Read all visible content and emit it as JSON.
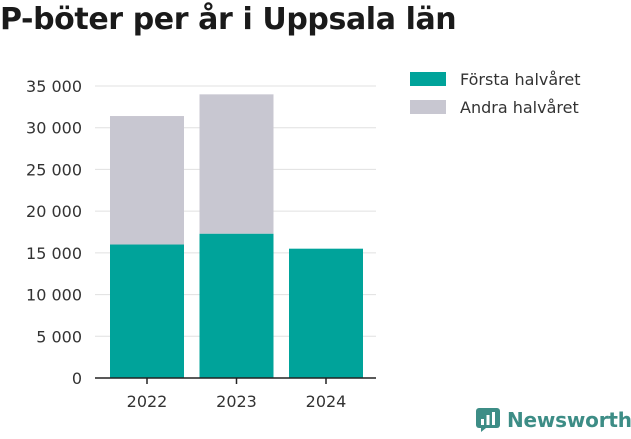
{
  "title": "P-böter per år i Uppsala län",
  "brand": {
    "name": "Newsworthy",
    "icon": "newsworthy-logo-icon",
    "color": "#3d8d86"
  },
  "chart_data": {
    "type": "bar",
    "stacked": true,
    "categories": [
      "2022",
      "2023",
      "2024"
    ],
    "series": [
      {
        "name": "Första halvåret",
        "color": "#00a39a",
        "values": [
          16000,
          17300,
          15500
        ]
      },
      {
        "name": "Andra halvåret",
        "color": "#c8c7d1",
        "values": [
          15400,
          16700,
          null
        ]
      }
    ],
    "ylim": [
      0,
      35000
    ],
    "yticks": [
      0,
      5000,
      10000,
      15000,
      20000,
      25000,
      30000,
      35000
    ],
    "ytick_labels": [
      "0",
      "5 000",
      "10 000",
      "15 000",
      "20 000",
      "25 000",
      "30 000",
      "35 000"
    ],
    "grid": true,
    "legend_position": "top-right",
    "xlabel": "",
    "ylabel": ""
  }
}
